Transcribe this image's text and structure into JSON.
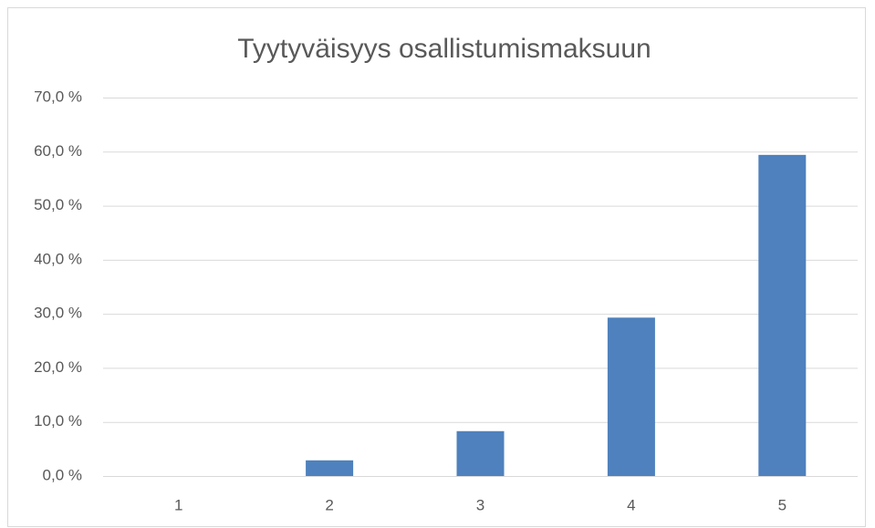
{
  "chart_data": {
    "type": "bar",
    "title": "Tyytyväisyys osallistumismaksuun",
    "categories": [
      "1",
      "2",
      "3",
      "4",
      "5"
    ],
    "values": [
      0,
      2.9,
      8.3,
      29.3,
      59.4
    ],
    "color": "#4e81bd",
    "ylim": [
      0,
      70
    ],
    "yticks": [
      {
        "value": 0,
        "label": "0,0 %"
      },
      {
        "value": 10,
        "label": "10,0 %"
      },
      {
        "value": 20,
        "label": "20,0 %"
      },
      {
        "value": 30,
        "label": "30,0 %"
      },
      {
        "value": 40,
        "label": "40,0 %"
      },
      {
        "value": 50,
        "label": "50,0 %"
      },
      {
        "value": 60,
        "label": "60,0 %"
      },
      {
        "value": 70,
        "label": "70,0 %"
      }
    ],
    "grid": true
  }
}
